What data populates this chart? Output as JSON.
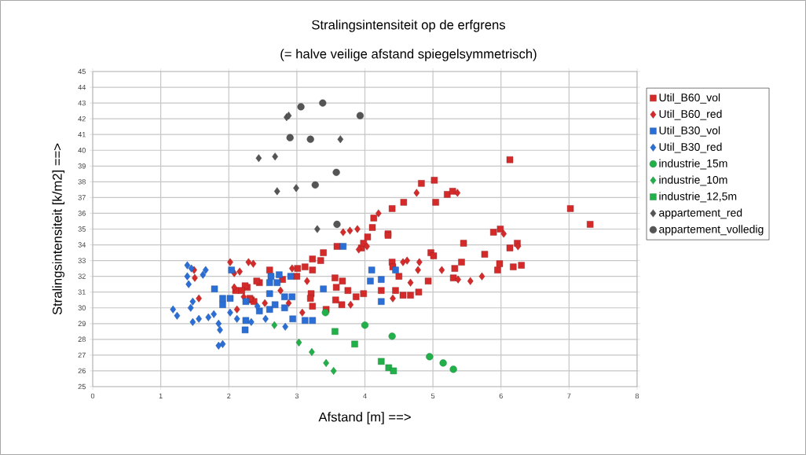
{
  "chart_data": {
    "type": "scatter",
    "title": "Stralingsintensiteit op de erfgrens",
    "subtitle": "(= halve veilige afstand spiegelsymmetrisch)",
    "xlabel": "Afstand [m] ==>",
    "ylabel": "Stralingsintensiteit [k/m2] ==>",
    "xlim": [
      0,
      8
    ],
    "ylim": [
      25,
      45
    ],
    "xticks": [
      0,
      1,
      2,
      3,
      4,
      5,
      6,
      7,
      8
    ],
    "yticks": [
      25,
      26,
      27,
      28,
      29,
      30,
      31,
      32,
      33,
      34,
      35,
      36,
      37,
      38,
      39,
      40,
      41,
      42,
      43,
      44,
      45
    ],
    "grid": true,
    "legend": "right",
    "series": [
      {
        "name": "Util_B60_vol",
        "color": "#d42a2a",
        "marker": "square",
        "x": [
          6.13,
          7.02,
          7.31,
          5.21,
          5.29,
          5.89,
          5.99,
          5.45,
          5.76,
          6.13,
          6.24,
          5.42,
          5.32,
          5.98,
          5.95,
          6.18,
          6.3,
          5.3,
          4.83,
          5.02,
          5.04,
          4.57,
          4.4,
          4.13,
          4.34,
          4.11,
          4.04,
          3.95,
          3.59,
          3.39,
          3.23,
          3.12,
          3.01,
          2.6,
          2.79,
          2.45,
          2.27,
          2.1,
          2.33,
          3.35,
          3.23,
          3.0,
          3.56,
          3.67,
          3.58,
          3.75,
          3.98,
          3.87,
          4.24,
          3.21,
          3.2,
          3.23,
          3.43,
          3.57,
          3.66,
          4.4,
          4.41,
          4.97,
          5.01,
          4.5,
          4.56,
          4.67,
          4.79,
          4.93,
          4.45,
          4.34,
          3.98,
          2.24,
          2.41,
          2.37,
          2.31,
          2.19
        ],
        "values": [
          39.4,
          36.3,
          35.3,
          37.2,
          37.4,
          34.8,
          35.0,
          34.1,
          33.4,
          33.8,
          34.1,
          32.9,
          32.5,
          32.8,
          32.4,
          32.6,
          32.7,
          31.9,
          37.9,
          38.1,
          36.7,
          36.7,
          36.3,
          35.7,
          34.7,
          35.1,
          34.5,
          33.8,
          33.9,
          33.5,
          33.1,
          32.6,
          32.5,
          32.4,
          31.8,
          31.6,
          31.3,
          31.1,
          30.5,
          33.0,
          32.4,
          32.0,
          31.9,
          31.7,
          31.3,
          31.1,
          30.9,
          30.7,
          31.1,
          30.9,
          30.6,
          30.1,
          29.9,
          30.5,
          30.2,
          32.9,
          32.6,
          33.5,
          33.3,
          32.0,
          30.8,
          30.8,
          31.0,
          31.7,
          31.1,
          34.6,
          34.1,
          31.4,
          31.7,
          30.4,
          30.6,
          31.1
        ]
      },
      {
        "name": "Util_B60_red",
        "color": "#d42a2a",
        "marker": "diamond",
        "x": [
          5.36,
          6.04,
          6.25,
          5.37,
          5.55,
          5.72,
          5.13,
          2.93,
          3.15,
          2.76,
          2.88,
          3.08,
          3.79,
          4.41,
          4.56,
          4.62,
          4.8,
          4.78,
          4.67,
          3.91,
          4.03,
          3.78,
          3.89,
          3.68,
          4.2,
          4.76,
          2.02,
          2.29,
          2.36,
          1.49,
          1.5,
          2.08,
          2.16,
          2.08,
          1.56,
          2.12,
          2.22,
          2.53
        ],
        "values": [
          37.3,
          34.7,
          33.9,
          31.8,
          31.7,
          32.0,
          32.4,
          32.5,
          31.7,
          31.1,
          30.3,
          29.7,
          30.2,
          30.6,
          32.9,
          33.0,
          32.9,
          32.4,
          31.6,
          33.7,
          33.9,
          34.9,
          35.0,
          34.8,
          36.0,
          37.3,
          32.9,
          32.9,
          32.8,
          32.4,
          31.9,
          32.2,
          32.3,
          31.3,
          30.6,
          29.9,
          30.7,
          30.3
        ]
      },
      {
        "name": "Util_B30_vol",
        "color": "#2a6ed6",
        "marker": "square",
        "x": [
          1.79,
          1.91,
          2.02,
          1.91,
          2.25,
          2.6,
          2.45,
          2.24,
          2.25,
          2.6,
          2.04,
          2.62,
          2.74,
          2.6,
          2.71,
          2.91,
          2.82,
          2.93,
          2.68,
          2.82,
          2.94,
          3.12,
          3.23,
          3.39,
          4.1,
          4.08,
          4.24,
          4.24,
          3.68,
          4.45
        ],
        "values": [
          31.2,
          30.6,
          30.6,
          30.2,
          30.4,
          30.9,
          29.8,
          28.6,
          29.2,
          29.9,
          32.4,
          32.0,
          32.1,
          31.6,
          31.6,
          32.0,
          30.7,
          30.7,
          30.2,
          30.0,
          29.3,
          29.2,
          29.2,
          31.2,
          32.4,
          31.7,
          31.8,
          30.4,
          33.9,
          32.4
        ]
      },
      {
        "name": "Util_B30_red",
        "color": "#2a6ed6",
        "marker": "diamond",
        "x": [
          1.39,
          1.45,
          1.39,
          1.66,
          1.62,
          1.41,
          1.47,
          1.44,
          1.18,
          1.24,
          1.47,
          1.56,
          1.7,
          1.78,
          1.85,
          1.87,
          1.91,
          1.85,
          2.02,
          2.12,
          2.33,
          2.54,
          2.42,
          2.83
        ],
        "values": [
          32.7,
          32.5,
          32.0,
          32.4,
          32.1,
          31.5,
          30.4,
          30.0,
          29.9,
          29.5,
          29.1,
          29.3,
          29.4,
          29.6,
          29.0,
          28.6,
          27.7,
          27.6,
          29.7,
          29.3,
          29.1,
          29.3,
          30.1,
          28.8
        ]
      },
      {
        "name": "industrie_15m",
        "color": "#22b04a",
        "marker": "circle",
        "x": [
          4.0,
          4.4,
          4.95,
          5.15,
          5.3,
          3.42
        ],
        "values": [
          28.9,
          28.2,
          26.9,
          26.5,
          26.1,
          29.7
        ]
      },
      {
        "name": "industrie_10m",
        "color": "#22b04a",
        "marker": "diamond",
        "x": [
          2.67,
          3.03,
          3.22,
          3.43,
          3.54
        ],
        "values": [
          28.9,
          27.8,
          27.2,
          26.5,
          26.0
        ]
      },
      {
        "name": "industrie_12,5m",
        "color": "#22b04a",
        "marker": "square",
        "x": [
          3.56,
          3.85,
          4.24,
          4.35,
          4.42
        ],
        "values": [
          28.5,
          27.7,
          26.6,
          26.2,
          26.0
        ]
      },
      {
        "name": "appartement_red",
        "color": "#555555",
        "marker": "diamond",
        "x": [
          2.85,
          2.88,
          2.44,
          2.68,
          3.64,
          2.71,
          2.99,
          3.3
        ],
        "values": [
          42.1,
          42.2,
          39.5,
          39.6,
          40.7,
          37.4,
          37.6,
          35.0
        ]
      },
      {
        "name": "appartement_volledig",
        "color": "#555555",
        "marker": "circle",
        "x": [
          3.06,
          3.38,
          3.93,
          2.9,
          3.2,
          3.58,
          3.27,
          3.59
        ],
        "values": [
          42.76,
          43.0,
          42.2,
          40.8,
          40.7,
          38.6,
          37.8,
          35.3
        ]
      }
    ]
  }
}
